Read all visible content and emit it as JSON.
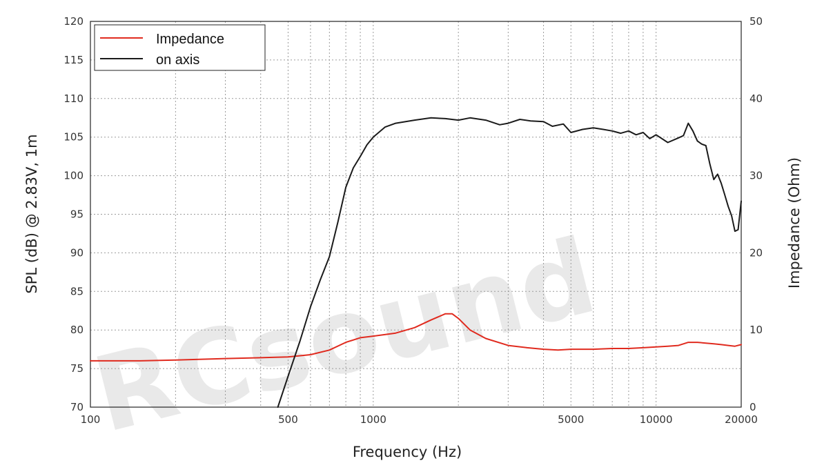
{
  "chart_data": {
    "type": "line",
    "watermark": "RCsound",
    "xlabel": "Frequency (Hz)",
    "ylabel": "SPL (dB) @ 2.83V, 1m",
    "y2label": "Impedance (Ohm)",
    "x_scale": "log",
    "xlim": [
      100,
      20000
    ],
    "ylim": [
      70,
      120
    ],
    "y2lim": [
      0,
      50
    ],
    "x_tick_labels": [
      "100",
      "500",
      "1000",
      "5000",
      "10000",
      "20000"
    ],
    "x_ticks": [
      100,
      500,
      1000,
      5000,
      10000,
      20000
    ],
    "y_ticks": [
      70,
      75,
      80,
      85,
      90,
      95,
      100,
      105,
      110,
      115,
      120
    ],
    "y2_ticks": [
      0,
      10,
      20,
      30,
      40,
      50
    ],
    "grid": true,
    "legend_position": "top-left",
    "series": [
      {
        "name": "Impedance",
        "axis": "right",
        "color": "#e02a1e",
        "x": [
          100,
          150,
          200,
          300,
          400,
          500,
          600,
          700,
          800,
          900,
          1000,
          1200,
          1400,
          1600,
          1800,
          1900,
          2000,
          2200,
          2500,
          3000,
          3500,
          4000,
          4500,
          5000,
          6000,
          7000,
          8000,
          9000,
          10000,
          11000,
          12000,
          13000,
          14000,
          15000,
          16000,
          17000,
          18000,
          19000,
          20000
        ],
        "values": [
          6.0,
          6.0,
          6.1,
          6.3,
          6.4,
          6.5,
          6.8,
          7.4,
          8.4,
          9.0,
          9.2,
          9.6,
          10.3,
          11.3,
          12.1,
          12.1,
          11.5,
          10.0,
          8.9,
          8.0,
          7.7,
          7.5,
          7.4,
          7.5,
          7.5,
          7.6,
          7.6,
          7.7,
          7.8,
          7.9,
          8.0,
          8.4,
          8.4,
          8.3,
          8.2,
          8.1,
          8.0,
          7.9,
          8.1
        ]
      },
      {
        "name": "on axis",
        "axis": "left",
        "color": "#1a1a1a",
        "x": [
          460,
          500,
          550,
          600,
          650,
          700,
          750,
          800,
          850,
          900,
          950,
          1000,
          1100,
          1200,
          1400,
          1600,
          1800,
          2000,
          2200,
          2500,
          2800,
          3000,
          3300,
          3600,
          4000,
          4300,
          4700,
          5000,
          5500,
          6000,
          6500,
          7000,
          7500,
          8000,
          8500,
          9000,
          9500,
          10000,
          11000,
          12000,
          12500,
          13000,
          13500,
          14000,
          14500,
          15000,
          15500,
          16000,
          16500,
          17000,
          17500,
          18000,
          18500,
          19000,
          19500,
          20000
        ],
        "values": [
          70.0,
          74.0,
          78.5,
          83.0,
          86.5,
          89.5,
          94.0,
          98.5,
          101.0,
          102.5,
          104.0,
          105.0,
          106.3,
          106.8,
          107.2,
          107.5,
          107.4,
          107.2,
          107.5,
          107.2,
          106.6,
          106.8,
          107.3,
          107.1,
          107.0,
          106.4,
          106.7,
          105.6,
          106.0,
          106.2,
          106.0,
          105.8,
          105.5,
          105.8,
          105.3,
          105.6,
          104.8,
          105.3,
          104.3,
          104.9,
          105.2,
          106.8,
          105.8,
          104.5,
          104.1,
          103.9,
          101.5,
          99.5,
          100.2,
          99.0,
          97.5,
          96.0,
          94.8,
          92.8,
          93.0,
          96.7
        ]
      }
    ]
  }
}
